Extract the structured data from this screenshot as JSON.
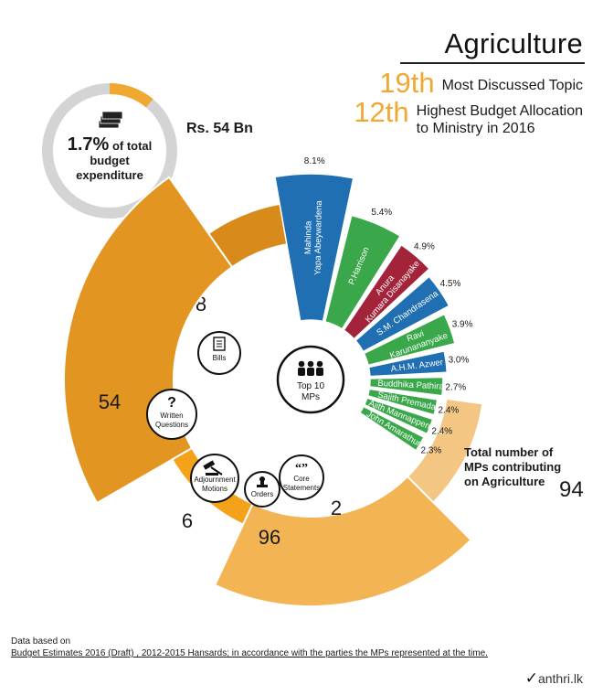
{
  "header": {
    "title": "Agriculture",
    "rank_discussed_number": "19th",
    "rank_discussed_text": "Most Discussed Topic",
    "rank_budget_number": "12th",
    "rank_budget_text_line1": "Highest Budget Allocation",
    "rank_budget_text_line2": "to Ministry in  2016"
  },
  "budget": {
    "amount": "Rs. 54 Bn",
    "share_percent": 1.7,
    "share_text": "1.7%",
    "text_line1": " of total",
    "text_line2": "budget",
    "text_line3": "expenditure",
    "icon": "money-stack-icon",
    "colors": {
      "ring": "#d4d4d4",
      "share": "#f0a830"
    }
  },
  "activity": {
    "categories": [
      {
        "name": "Bills",
        "value": 8,
        "label": "8",
        "icon": "document-icon",
        "color": "#d88a1a"
      },
      {
        "name": "Written Questions",
        "value": 54,
        "label": "54",
        "icon": "question-icon",
        "color": "#e39522"
      },
      {
        "name": "Adjournment Motions",
        "value": 6,
        "label": "6",
        "icon": "gavel-icon",
        "color": "#f3a21a"
      },
      {
        "name": "Orders",
        "value": 96,
        "label": "96",
        "icon": "stamp-icon",
        "color": "#f3b454"
      },
      {
        "name": "Core Statements",
        "value": 2,
        "label": "2",
        "icon": "quote-icon",
        "color": "#f3c684"
      }
    ],
    "center_label_line1": "Top 10",
    "center_label_line2": "MPs",
    "center_icon": "people-icon"
  },
  "chart_data": {
    "type": "bar",
    "series": [
      {
        "categories": [
          "Mahinda Yapa Abeywardena",
          "P.Harrison",
          "Anura Kumara Disanayake",
          "S.M. Chandrasena",
          "Ravi Karunananyake",
          "A.H.M. Azwer",
          "Buddhika Pathirana",
          "Sajith Premadasa",
          "Ajith Mannapperuma",
          "John Amarathunga"
        ],
        "values": [
          8.1,
          5.4,
          4.9,
          4.5,
          3.9,
          3.0,
          2.7,
          2.4,
          2.4,
          2.3
        ],
        "value_labels": [
          "8.1%",
          "5.4%",
          "4.9%",
          "4.5%",
          "3.9%",
          "3.0%",
          "2.7%",
          "2.4%",
          "2.4%",
          "2.3%"
        ],
        "label_lines": [
          [
            "Mahinda",
            "Yapa Abeywardena"
          ],
          [
            "P.Harrison"
          ],
          [
            "Anura",
            "Kumara Disanayake"
          ],
          [
            "S.M. Chandrasena"
          ],
          [
            "Ravi",
            "Karunananyake"
          ],
          [
            "A.H.M. Azwer"
          ],
          [
            "Buddhika Pathirana"
          ],
          [
            "Sajith Premadasa"
          ],
          [
            "Ajith Mannapperuma"
          ],
          [
            "John Amarathunga"
          ]
        ],
        "colors": [
          "#1f6fb2",
          "#3aa84a",
          "#a3243a",
          "#1f6fb2",
          "#3aa84a",
          "#1f6fb2",
          "#3aa84a",
          "#3aa84a",
          "#3aa84a",
          "#3aa84a"
        ]
      }
    ]
  },
  "total_mps": {
    "label_line1": "Total number of",
    "label_line2": "MPs contributing",
    "label_line3": "on Agriculture",
    "value": "94"
  },
  "footer": {
    "line1": "Data based on",
    "line2": "Budget Estimates 2016 (Draft) , 2012-2015 Hansards; in accordance with the parties the MPs represented at the time.",
    "brand_mark": "✓",
    "brand": "anthri.lk"
  }
}
